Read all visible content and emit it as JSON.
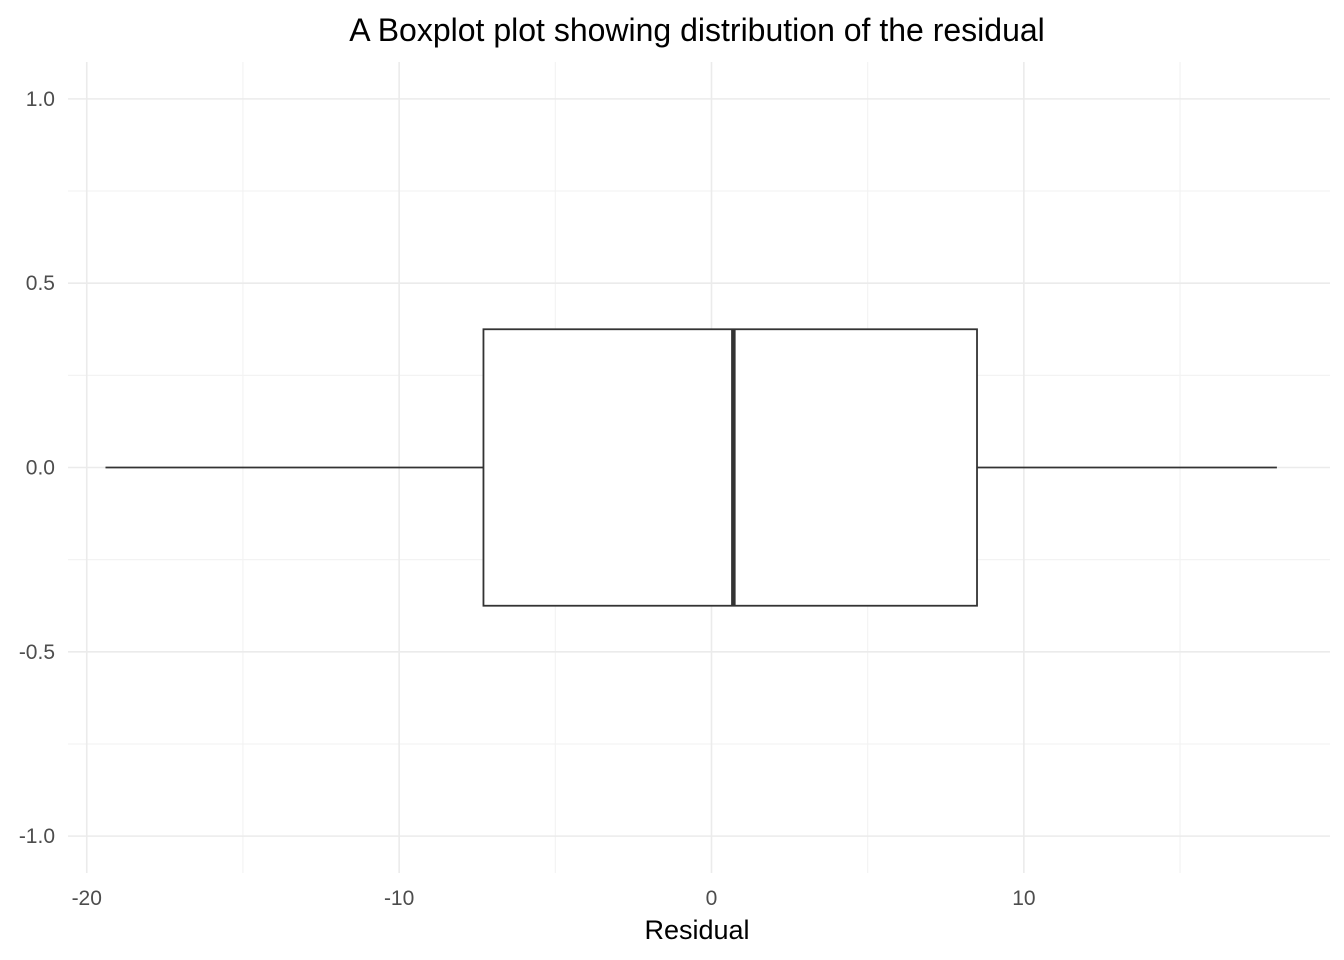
{
  "chart_data": {
    "type": "boxplot",
    "title": "A Boxplot plot showing distribution of the residual",
    "xlabel": "Residual",
    "ylabel": "",
    "orientation": "horizontal",
    "xlim": [
      -20.6,
      19.8
    ],
    "ylim": [
      -1.1,
      1.1
    ],
    "x_ticks": [
      -20,
      -10,
      0,
      10
    ],
    "x_tick_labels": [
      "-20",
      "-10",
      "0",
      "10"
    ],
    "y_ticks": [
      1.0,
      0.5,
      0.0,
      -0.5,
      -1.0
    ],
    "y_tick_labels": [
      "1.0",
      "0.5",
      "0.0",
      "-0.5",
      "-1.0"
    ],
    "grid": true,
    "box": {
      "whisker_low": -19.4,
      "q1": -7.3,
      "median": 0.7,
      "q3": 8.5,
      "whisker_high": 18.1,
      "y_center": 0.0,
      "half_width": 0.375
    },
    "colors": {
      "box_fill": "#ffffff",
      "box_stroke": "#333333",
      "median": "#333333",
      "whisker": "#333333"
    }
  }
}
